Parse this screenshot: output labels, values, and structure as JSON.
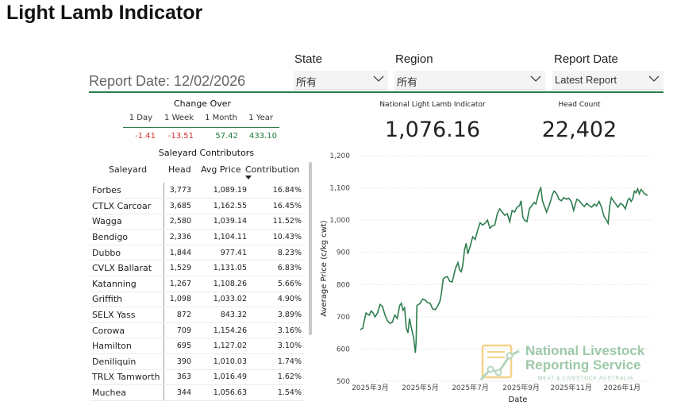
{
  "title": "Light Lamb Indicator",
  "report_date_label": "Report Date: 12/02/2026",
  "filters": {
    "state": {
      "label": "State",
      "value": "所有"
    },
    "region": {
      "label": "Region",
      "value": "所有"
    },
    "report_date": {
      "label": "Report Date",
      "value": "Latest Report"
    }
  },
  "change_over": {
    "title": "Change Over",
    "headers": [
      "1 Day",
      "1 Week",
      "1 Month",
      "1 Year"
    ],
    "values": [
      "-1.41",
      "-13.51",
      "57.42",
      "433.10"
    ]
  },
  "kpis": {
    "indicator": {
      "label": "National Light Lamb Indicator",
      "value": "1,076.16"
    },
    "head_count": {
      "label": "Head Count",
      "value": "22,402"
    }
  },
  "saleyards": {
    "title": "Saleyard Contributors",
    "columns": [
      "Saleyard",
      "Head",
      "Avg Price",
      "Contribution"
    ],
    "sort_icon": "sort-desc-icon",
    "rows": [
      {
        "name": "Forbes",
        "head": "3,773",
        "avg": "1,089.19",
        "contribution": "16.84%"
      },
      {
        "name": "CTLX Carcoar",
        "head": "3,685",
        "avg": "1,162.55",
        "contribution": "16.45%"
      },
      {
        "name": "Wagga",
        "head": "2,580",
        "avg": "1,039.14",
        "contribution": "11.52%"
      },
      {
        "name": "Bendigo",
        "head": "2,336",
        "avg": "1,104.11",
        "contribution": "10.43%"
      },
      {
        "name": "Dubbo",
        "head": "1,844",
        "avg": "977.41",
        "contribution": "8.23%"
      },
      {
        "name": "CVLX Ballarat",
        "head": "1,529",
        "avg": "1,131.05",
        "contribution": "6.83%"
      },
      {
        "name": "Katanning",
        "head": "1,267",
        "avg": "1,108.26",
        "contribution": "5.66%"
      },
      {
        "name": "Griffith",
        "head": "1,098",
        "avg": "1,033.02",
        "contribution": "4.90%"
      },
      {
        "name": "SELX Yass",
        "head": "872",
        "avg": "843.32",
        "contribution": "3.89%"
      },
      {
        "name": "Corowa",
        "head": "709",
        "avg": "1,154.26",
        "contribution": "3.16%"
      },
      {
        "name": "Hamilton",
        "head": "695",
        "avg": "1,127.02",
        "contribution": "3.10%"
      },
      {
        "name": "Deniliquin",
        "head": "390",
        "avg": "1,010.03",
        "contribution": "1.74%"
      },
      {
        "name": "TRLX Tamworth",
        "head": "363",
        "avg": "1,016.49",
        "contribution": "1.62%"
      },
      {
        "name": "Muchea",
        "head": "344",
        "avg": "1,056.63",
        "contribution": "1.54%"
      }
    ]
  },
  "watermark": {
    "line1": "National Livestock",
    "line2": "Reporting Service",
    "line3": "MEAT & LIVESTOCK AUSTRALIA"
  },
  "colors": {
    "accent": "#2e7d4f",
    "negative": "#d03030",
    "positive": "#1e7a3c",
    "line": "#2e7d4f"
  },
  "chart_data": {
    "type": "line",
    "xlabel": "Date",
    "ylabel": "Average Price (c/kg cwt)",
    "ylim": [
      500,
      1200
    ],
    "yticks": [
      500,
      600,
      700,
      800,
      900,
      1000,
      1100,
      1200
    ],
    "xticks": [
      {
        "label": "2025年3月",
        "x": 2
      },
      {
        "label": "2025年5月",
        "x": 63
      },
      {
        "label": "2025年7月",
        "x": 124
      },
      {
        "label": "2025年9月",
        "x": 186
      },
      {
        "label": "2025年11月",
        "x": 247
      },
      {
        "label": "2026年1月",
        "x": 309
      }
    ],
    "grid": true,
    "series": [
      {
        "points": [
          [
            -10,
            660
          ],
          [
            -7,
            665
          ],
          [
            -5,
            690
          ],
          [
            -3,
            712
          ],
          [
            -1,
            708
          ],
          [
            1,
            705
          ],
          [
            3,
            718
          ],
          [
            5,
            714
          ],
          [
            8,
            700
          ],
          [
            11,
            712
          ],
          [
            14,
            738
          ],
          [
            17,
            732
          ],
          [
            20,
            706
          ],
          [
            23,
            688
          ],
          [
            26,
            680
          ],
          [
            29,
            683
          ],
          [
            32,
            705
          ],
          [
            35,
            695
          ],
          [
            38,
            735
          ],
          [
            40,
            742
          ],
          [
            42,
            720
          ],
          [
            44,
            728
          ],
          [
            46,
            665
          ],
          [
            48,
            650
          ],
          [
            50,
            695
          ],
          [
            52,
            668
          ],
          [
            55,
            635
          ],
          [
            57,
            588
          ],
          [
            58,
            620
          ],
          [
            59,
            735
          ],
          [
            61,
            738
          ],
          [
            63,
            742
          ],
          [
            66,
            755
          ],
          [
            69,
            752
          ],
          [
            72,
            744
          ],
          [
            75,
            742
          ],
          [
            78,
            725
          ],
          [
            81,
            722
          ],
          [
            84,
            732
          ],
          [
            87,
            748
          ],
          [
            89,
            775
          ],
          [
            91,
            818
          ],
          [
            93,
            822
          ],
          [
            96,
            825
          ],
          [
            99,
            810
          ],
          [
            102,
            808
          ],
          [
            104,
            830
          ],
          [
            106,
            850
          ],
          [
            109,
            868
          ],
          [
            111,
            845
          ],
          [
            113,
            840
          ],
          [
            115,
            862
          ],
          [
            117,
            908
          ],
          [
            119,
            928
          ],
          [
            121,
            895
          ],
          [
            124,
            920
          ],
          [
            127,
            948
          ],
          [
            130,
            940
          ],
          [
            133,
            968
          ],
          [
            136,
            992
          ],
          [
            139,
            985
          ],
          [
            142,
            990
          ],
          [
            145,
            1000
          ],
          [
            148,
            975
          ],
          [
            151,
            982
          ],
          [
            154,
            985
          ],
          [
            157,
            1020
          ],
          [
            160,
            1035
          ],
          [
            163,
            1025
          ],
          [
            166,
            1015
          ],
          [
            169,
            1020
          ],
          [
            172,
            995
          ],
          [
            175,
            1030
          ],
          [
            178,
            1025
          ],
          [
            181,
            1040
          ],
          [
            184,
            1045
          ],
          [
            186,
            1060
          ],
          [
            188,
            1010
          ],
          [
            190,
            1000
          ],
          [
            193,
            995
          ],
          [
            196,
            1035
          ],
          [
            199,
            1045
          ],
          [
            202,
            1055
          ],
          [
            204,
            1050
          ],
          [
            206,
            1070
          ],
          [
            208,
            1090
          ],
          [
            210,
            1100
          ],
          [
            212,
            1060
          ],
          [
            214,
            1045
          ],
          [
            217,
            1025
          ],
          [
            220,
            1045
          ],
          [
            222,
            1060
          ],
          [
            224,
            1078
          ],
          [
            226,
            1090
          ],
          [
            228,
            1086
          ],
          [
            230,
            1078
          ],
          [
            232,
            1065
          ],
          [
            235,
            1060
          ],
          [
            238,
            1070
          ],
          [
            241,
            1065
          ],
          [
            244,
            1068
          ],
          [
            247,
            1058
          ],
          [
            250,
            1030
          ],
          [
            252,
            1050
          ],
          [
            254,
            1065
          ],
          [
            257,
            1060
          ],
          [
            260,
            1050
          ],
          [
            263,
            1042
          ],
          [
            266,
            1052
          ],
          [
            269,
            1045
          ],
          [
            272,
            1040
          ],
          [
            275,
            1050
          ],
          [
            278,
            1044
          ],
          [
            281,
            1058
          ],
          [
            284,
            1040
          ],
          [
            287,
            1012
          ],
          [
            290,
            1000
          ],
          [
            292,
            990
          ],
          [
            294,
            1045
          ],
          [
            296,
            1070
          ],
          [
            299,
            1058
          ],
          [
            302,
            1048
          ],
          [
            304,
            1040
          ],
          [
            307,
            1052
          ],
          [
            310,
            1047
          ],
          [
            313,
            1035
          ],
          [
            316,
            1062
          ],
          [
            318,
            1068
          ],
          [
            320,
            1058
          ],
          [
            322,
            1066
          ],
          [
            324,
            1090
          ],
          [
            326,
            1085
          ],
          [
            328,
            1097
          ],
          [
            330,
            1082
          ],
          [
            332,
            1095
          ],
          [
            334,
            1090
          ],
          [
            336,
            1082
          ],
          [
            338,
            1080
          ],
          [
            340,
            1076
          ]
        ]
      }
    ]
  }
}
